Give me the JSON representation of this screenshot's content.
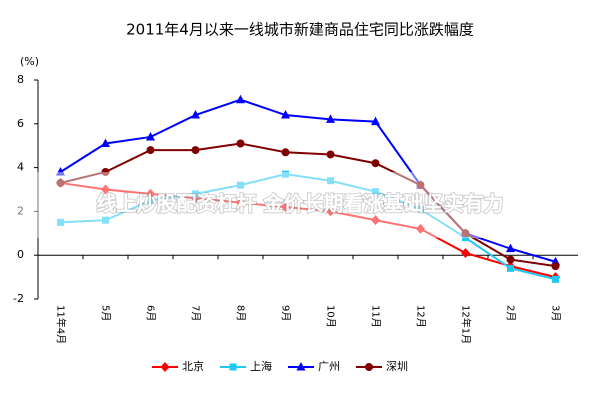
{
  "chart_data": {
    "type": "line",
    "title": "2011年4月以来一线城市新建商品住宅同比涨跌幅度",
    "y_label": "(%)",
    "categories": [
      "11年4月",
      "5月",
      "6月",
      "7月",
      "8月",
      "9月",
      "10月",
      "11月",
      "12月",
      "12年1月",
      "2月",
      "3月"
    ],
    "series": [
      {
        "name": "北京",
        "color": "#ff0000",
        "marker": "diamond",
        "values": [
          3.3,
          3.0,
          2.8,
          2.6,
          2.4,
          2.2,
          2.0,
          1.6,
          1.2,
          0.1,
          -0.5,
          -1.0
        ]
      },
      {
        "name": "上海",
        "color": "#1ec8f0",
        "marker": "square",
        "values": [
          1.5,
          1.6,
          2.5,
          2.8,
          3.2,
          3.7,
          3.4,
          2.9,
          2.1,
          0.8,
          -0.6,
          -1.1
        ]
      },
      {
        "name": "广州",
        "color": "#0000ff",
        "marker": "triangle",
        "values": [
          3.8,
          5.1,
          5.4,
          6.4,
          7.1,
          6.4,
          6.2,
          6.1,
          3.2,
          1.0,
          0.3,
          -0.3
        ]
      },
      {
        "name": "深圳",
        "color": "#800000",
        "marker": "circle",
        "values": [
          3.3,
          3.8,
          4.8,
          4.8,
          5.1,
          4.7,
          4.6,
          4.2,
          3.2,
          1.0,
          -0.2,
          -0.5
        ]
      }
    ],
    "ylim": [
      -2,
      8
    ],
    "yticks": [
      -2,
      0,
      2,
      4,
      6,
      8
    ],
    "grid": false,
    "overlay_text": "线上炒股配资杠杆 金价长期看涨基础坚实有力"
  }
}
